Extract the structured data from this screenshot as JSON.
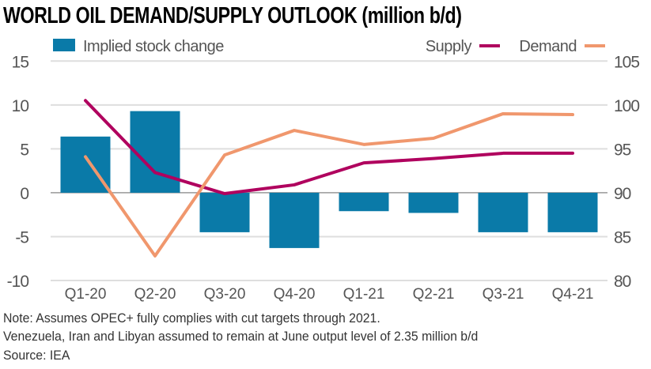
{
  "chart_data": {
    "type": "bar+line",
    "title": "WORLD OIL DEMAND/SUPPLY OUTLOOK (million b/d)",
    "categories": [
      "Q1-20",
      "Q2-20",
      "Q3-20",
      "Q4-20",
      "Q1-21",
      "Q2-21",
      "Q3-21",
      "Q4-21"
    ],
    "left_axis": {
      "ylim": [
        -10,
        15
      ],
      "ticks": [
        "15",
        "10",
        "5",
        "0",
        "-5",
        "-10"
      ],
      "tick_values": [
        15,
        10,
        5,
        0,
        -5,
        -10
      ]
    },
    "right_axis": {
      "ylim": [
        80,
        105
      ],
      "ticks": [
        "105",
        "100",
        "95",
        "90",
        "85",
        "80"
      ],
      "tick_values": [
        105,
        100,
        95,
        90,
        85,
        80
      ]
    },
    "grid": true,
    "legend_placement": "top",
    "series": [
      {
        "name": "Implied stock change",
        "type": "bar",
        "axis": "left",
        "color": "#0a7aa8",
        "values": [
          6.4,
          9.3,
          -4.5,
          -6.3,
          -2.1,
          -2.3,
          -4.5,
          -4.5
        ]
      },
      {
        "name": "Supply",
        "type": "line",
        "axis": "right",
        "color": "#b0005e",
        "values": [
          100.5,
          92.3,
          89.9,
          90.9,
          93.4,
          93.9,
          94.5,
          94.5
        ]
      },
      {
        "name": "Demand",
        "type": "line",
        "axis": "right",
        "color": "#f0976d",
        "values": [
          94.1,
          82.8,
          94.3,
          97.1,
          95.5,
          96.2,
          99.0,
          98.9
        ]
      }
    ]
  },
  "notes": {
    "line1": "Note: Assumes OPEC+ fully complies with cut targets through 2021.",
    "line2": "Venezuela, Iran and Libyan assumed to remain at June output level of 2.35 million b/d",
    "source": "Source: IEA"
  }
}
